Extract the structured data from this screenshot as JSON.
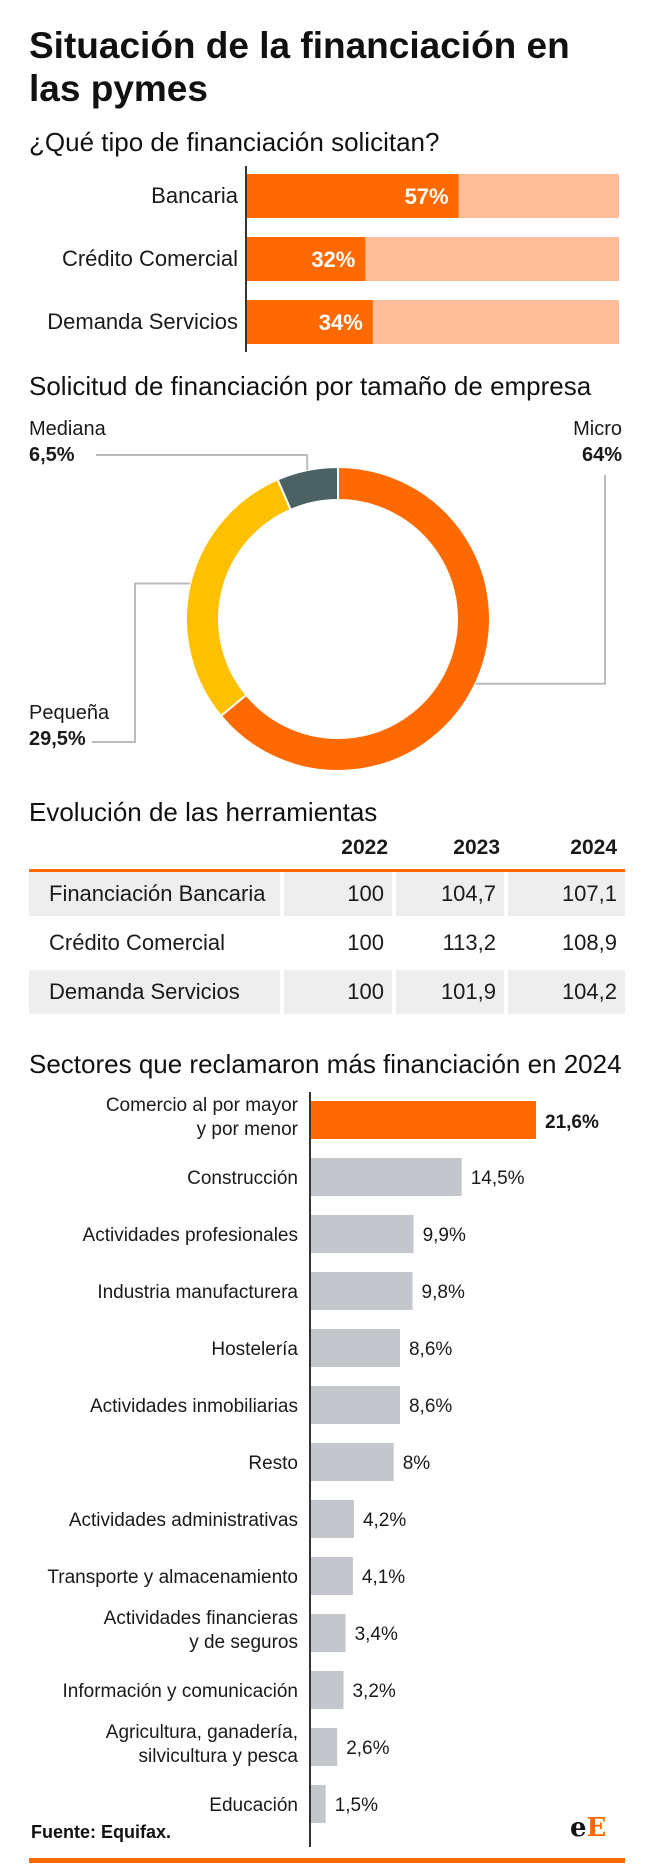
{
  "title": "Situación de la financiación en las pymes",
  "section1": {
    "title": "¿Qué tipo de financiación solicitan?"
  },
  "section2": {
    "title": "Solicitud de financiación por tamaño de empresa"
  },
  "section3": {
    "title": "Evolución de las herramientas"
  },
  "section4": {
    "title": "Sectores que reclamaron más financiación en 2024"
  },
  "source": "Fuente: Equifax.",
  "logo": {
    "part1": "e",
    "part2": "E"
  },
  "colors": {
    "orange": "#ff6a00",
    "light_orange": "#ffbd9a",
    "yellow": "#ffc000",
    "slate": "#4b6163",
    "gray_bar": "#c3c7cc",
    "axis": "#333333"
  },
  "chart_data": [
    {
      "type": "bar",
      "orientation": "horizontal",
      "title": "¿Qué tipo de financiación solicitan?",
      "categories": [
        "Bancaria",
        "Crédito Comercial",
        "Demanda Servicios"
      ],
      "values": [
        57,
        32,
        34
      ],
      "value_labels": [
        "57%",
        "32%",
        "34%"
      ],
      "xlim": [
        0,
        100
      ]
    },
    {
      "type": "pie",
      "title": "Solicitud de financiación por tamaño de empresa",
      "categories": [
        "Micro",
        "Pequeña",
        "Mediana"
      ],
      "values": [
        64,
        29.5,
        6.5
      ],
      "value_labels": [
        "64%",
        "29,5%",
        "6,5%"
      ]
    },
    {
      "type": "table",
      "title": "Evolución de las herramientas",
      "columns": [
        "2022",
        "2023",
        "2024"
      ],
      "rows": [
        {
          "label": "Financiación Bancaria",
          "values": [
            "100",
            "104,7",
            "107,1"
          ]
        },
        {
          "label": "Crédito Comercial",
          "values": [
            "100",
            "113,2",
            "108,9"
          ]
        },
        {
          "label": "Demanda Servicios",
          "values": [
            "100",
            "101,9",
            "104,2"
          ]
        }
      ]
    },
    {
      "type": "bar",
      "orientation": "horizontal",
      "title": "Sectores que reclamaron más financiación en 2024",
      "categories": [
        [
          "Comercio al por mayor",
          "y por menor"
        ],
        [
          "Construcción"
        ],
        [
          "Actividades profesionales"
        ],
        [
          "Industria manufacturera"
        ],
        [
          "Hostelería"
        ],
        [
          "Actividades inmobiliarias"
        ],
        [
          "Resto"
        ],
        [
          "Actividades administrativas"
        ],
        [
          "Transporte y almacenamiento"
        ],
        [
          "Actividades financieras",
          "y de seguros"
        ],
        [
          "Información y comunicación"
        ],
        [
          "Agricultura, ganadería,",
          "silvicultura y pesca"
        ],
        [
          "Educación"
        ]
      ],
      "values": [
        21.6,
        14.5,
        9.9,
        9.8,
        8.6,
        8.6,
        8,
        4.2,
        4.1,
        3.4,
        3.2,
        2.6,
        1.5
      ],
      "value_labels": [
        "21,6%",
        "14,5%",
        "9,9%",
        "9,8%",
        "8,6%",
        "8,6%",
        "8%",
        "4,2%",
        "4,1%",
        "3,4%",
        "3,2%",
        "2,6%",
        "1,5%"
      ],
      "highlight_index": 0
    }
  ]
}
